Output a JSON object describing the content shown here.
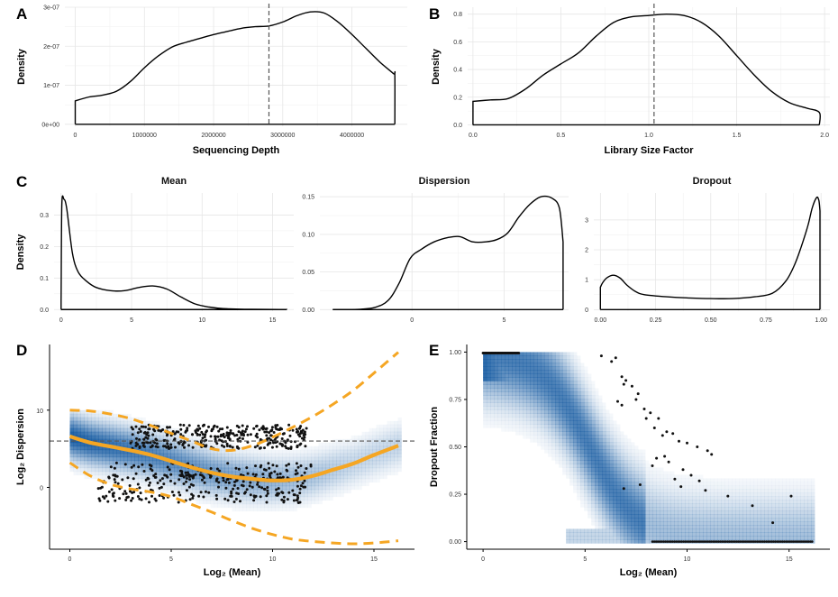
{
  "colors": {
    "line": "#000000",
    "trend": "#f5a623",
    "heat_low": "#ffffff",
    "heat_high": "#08519c",
    "points": "#111111",
    "reference": "#555555"
  },
  "chart_data": [
    {
      "panel": "A",
      "type": "line",
      "title": "",
      "xlabel": "Sequencing Depth",
      "ylabel": "Density",
      "xlim": [
        -150000,
        4800000
      ],
      "ylim": [
        -5e-09,
        3e-07
      ],
      "xticks": [
        0,
        1000000,
        2000000,
        3000000,
        4000000
      ],
      "xtick_labels": [
        "0",
        "1000000",
        "2000000",
        "3000000",
        "4000000"
      ],
      "yticks": [
        0,
        1e-07,
        2e-07,
        3e-07
      ],
      "ytick_labels": [
        "0e+00",
        "1e-07",
        "2e-07",
        "3e-07"
      ],
      "grid": true,
      "reference_line_x": 2800000,
      "x": [
        0,
        200000,
        400000,
        600000,
        800000,
        1000000,
        1200000,
        1400000,
        1600000,
        1800000,
        2000000,
        2200000,
        2400000,
        2600000,
        2800000,
        3000000,
        3200000,
        3400000,
        3600000,
        3800000,
        4000000,
        4200000,
        4400000,
        4600000,
        4620000,
        4620000
      ],
      "y": [
        6e-08,
        7e-08,
        7.5e-08,
        8.5e-08,
        1.1e-07,
        1.45e-07,
        1.75e-07,
        1.98e-07,
        2.1e-07,
        2.2e-07,
        2.3e-07,
        2.38e-07,
        2.46e-07,
        2.5e-07,
        2.52e-07,
        2.62e-07,
        2.78e-07,
        2.88e-07,
        2.85e-07,
        2.62e-07,
        2.3e-07,
        1.95e-07,
        1.6e-07,
        1.3e-07,
        1.25e-07,
        0
      ]
    },
    {
      "panel": "B",
      "type": "line",
      "title": "",
      "xlabel": "Library Size Factor",
      "ylabel": "Density",
      "xlim": [
        -0.03,
        2.03
      ],
      "ylim": [
        -0.01,
        0.85
      ],
      "xticks": [
        0.0,
        0.5,
        1.0,
        1.5,
        2.0
      ],
      "xtick_labels": [
        "0.0",
        "0.5",
        "1.0",
        "1.5",
        "2.0"
      ],
      "yticks": [
        0.0,
        0.2,
        0.4,
        0.6,
        0.8
      ],
      "ytick_labels": [
        "0.0",
        "0.2",
        "0.4",
        "0.6",
        "0.8"
      ],
      "grid": true,
      "reference_line_x": 1.03,
      "x": [
        0.0,
        0.1,
        0.2,
        0.3,
        0.4,
        0.5,
        0.6,
        0.7,
        0.8,
        0.9,
        1.0,
        1.1,
        1.2,
        1.3,
        1.4,
        1.5,
        1.6,
        1.7,
        1.8,
        1.9,
        1.97,
        1.97
      ],
      "y": [
        0.17,
        0.18,
        0.19,
        0.26,
        0.36,
        0.44,
        0.52,
        0.64,
        0.74,
        0.78,
        0.79,
        0.8,
        0.79,
        0.74,
        0.64,
        0.5,
        0.36,
        0.24,
        0.16,
        0.12,
        0.09,
        0
      ]
    },
    {
      "panel": "C",
      "type": "line",
      "title": "Mean",
      "xlabel": "",
      "ylabel": "Density",
      "xlim": [
        -0.5,
        16.5
      ],
      "ylim": [
        -0.005,
        0.37
      ],
      "xticks": [
        0,
        5,
        10,
        15
      ],
      "xtick_labels": [
        "0",
        "5",
        "10",
        "15"
      ],
      "yticks": [
        0.0,
        0.1,
        0.2,
        0.3
      ],
      "ytick_labels": [
        "0.0",
        "0.1",
        "0.2",
        "0.3"
      ],
      "grid": true,
      "x": [
        0,
        0.05,
        0.2,
        0.4,
        0.8,
        1.2,
        1.8,
        2.5,
        3.5,
        4.5,
        5.5,
        6.5,
        7.5,
        8.5,
        9.5,
        10.5,
        11.5,
        13,
        14.5,
        15.5,
        16
      ],
      "y": [
        0.03,
        0.33,
        0.35,
        0.32,
        0.18,
        0.12,
        0.09,
        0.07,
        0.06,
        0.06,
        0.07,
        0.075,
        0.065,
        0.04,
        0.018,
        0.008,
        0.003,
        0.001,
        0.0005,
        0.0002,
        0.0001
      ]
    },
    {
      "panel": "C",
      "type": "line",
      "title": "Dispersion",
      "xlabel": "",
      "ylabel": "",
      "xlim": [
        -5,
        8.5
      ],
      "ylim": [
        -0.002,
        0.155
      ],
      "xticks": [
        0,
        5
      ],
      "xtick_labels": [
        "0",
        "5"
      ],
      "yticks": [
        0.0,
        0.05,
        0.1,
        0.15
      ],
      "ytick_labels": [
        "0.00",
        "0.05",
        "0.10",
        "0.15"
      ],
      "grid": true,
      "x": [
        -4.3,
        -3.5,
        -2.8,
        -2,
        -1.3,
        -0.7,
        -0.1,
        0.5,
        1.2,
        2.0,
        2.6,
        3.3,
        4.0,
        4.6,
        5.2,
        5.8,
        6.4,
        7.0,
        7.6,
        8.0,
        8.2
      ],
      "y": [
        0,
        0,
        0.0005,
        0.003,
        0.012,
        0.035,
        0.068,
        0.08,
        0.09,
        0.096,
        0.097,
        0.09,
        0.09,
        0.093,
        0.102,
        0.123,
        0.14,
        0.15,
        0.148,
        0.135,
        0.09
      ]
    },
    {
      "panel": "C",
      "type": "line",
      "title": "Dropout",
      "xlabel": "",
      "ylabel": "",
      "xlim": [
        -0.03,
        1.04
      ],
      "ylim": [
        -0.05,
        3.9
      ],
      "xticks": [
        0.0,
        0.25,
        0.5,
        0.75,
        1.0
      ],
      "xtick_labels": [
        "0.00",
        "0.25",
        "0.50",
        "0.75",
        "1.00"
      ],
      "yticks": [
        0,
        1,
        2,
        3
      ],
      "ytick_labels": [
        "0",
        "1",
        "2",
        "3"
      ],
      "grid": true,
      "x": [
        0.0,
        0.01,
        0.03,
        0.06,
        0.09,
        0.12,
        0.16,
        0.2,
        0.3,
        0.4,
        0.5,
        0.6,
        0.7,
        0.78,
        0.84,
        0.88,
        0.91,
        0.94,
        0.96,
        0.98,
        0.99,
        0.995
      ],
      "y": [
        0.75,
        0.9,
        1.07,
        1.15,
        1.05,
        0.82,
        0.6,
        0.5,
        0.43,
        0.39,
        0.37,
        0.37,
        0.43,
        0.55,
        0.95,
        1.5,
        2.1,
        2.8,
        3.4,
        3.75,
        3.65,
        3.3
      ]
    },
    {
      "panel": "D",
      "type": "scatter",
      "title": "",
      "xlabel": "Log₂ (Mean)",
      "ylabel": "Log₂ Dispersion",
      "xlim": [
        -1,
        17
      ],
      "ylim": [
        -8,
        18.5
      ],
      "xticks": [
        0,
        5,
        10,
        15
      ],
      "xtick_labels": [
        "0",
        "5",
        "10",
        "15"
      ],
      "yticks": [
        0,
        10
      ],
      "ytick_labels": [
        "0",
        "10"
      ],
      "grid": false,
      "reference_line_y": 6,
      "density_background": true,
      "trend_x": [
        0,
        1,
        2,
        3,
        4,
        5,
        6,
        7,
        8,
        9,
        10,
        11,
        12,
        13,
        14,
        15,
        16.2
      ],
      "trend_y": [
        6.6,
        5.8,
        5.3,
        4.8,
        4.2,
        3.4,
        2.6,
        1.9,
        1.4,
        1.1,
        0.9,
        1.0,
        1.5,
        2.3,
        3.1,
        4.2,
        5.4
      ],
      "upper_x": [
        0,
        1,
        2,
        3,
        4,
        5,
        6,
        7,
        8,
        9,
        10,
        11,
        12,
        13,
        14,
        15,
        16.2
      ],
      "upper_y": [
        10,
        9.9,
        9.5,
        8.9,
        8.0,
        7.0,
        6.0,
        5.0,
        4.8,
        5.4,
        6.5,
        7.8,
        9.2,
        10.8,
        12.6,
        14.8,
        17.5
      ],
      "lower_x": [
        0,
        1,
        2,
        3,
        4,
        5,
        6,
        7,
        8,
        9,
        10,
        11,
        12,
        13,
        14,
        15,
        16.2
      ],
      "lower_y": [
        3.2,
        1.5,
        0.4,
        -0.2,
        -0.6,
        -1.2,
        -2.2,
        -3.2,
        -4.3,
        -5.3,
        -6.1,
        -6.7,
        -7.0,
        -7.2,
        -7.3,
        -7.2,
        -6.9
      ]
    },
    {
      "panel": "E",
      "type": "scatter",
      "title": "",
      "xlabel": "Log₂ (Mean)",
      "ylabel": "Dropout Fraction",
      "xlim": [
        -0.8,
        17
      ],
      "ylim": [
        -0.04,
        1.04
      ],
      "xticks": [
        0,
        5,
        10,
        15
      ],
      "xtick_labels": [
        "0",
        "5",
        "10",
        "15"
      ],
      "yticks": [
        0.0,
        0.25,
        0.5,
        0.75,
        1.0
      ],
      "ytick_labels": [
        "0.00",
        "0.25",
        "0.50",
        "0.75",
        "1.00"
      ],
      "grid": false,
      "density_background": true,
      "points_x": [
        5.8,
        6.5,
        6.3,
        6.8,
        7.0,
        6.9,
        7.3,
        7.6,
        7.5,
        6.6,
        6.8,
        7.9,
        8.2,
        8.0,
        8.6,
        8.4,
        9.0,
        9.3,
        8.8,
        9.6,
        10.0,
        10.5,
        11.0,
        11.2,
        8.5,
        9.1,
        8.3,
        9.8,
        10.2,
        9.4,
        10.6,
        7.7,
        6.9,
        12.0,
        13.2,
        14.2,
        15.1,
        9.7,
        8.9,
        10.9
      ],
      "points_y": [
        0.98,
        0.97,
        0.95,
        0.87,
        0.85,
        0.83,
        0.82,
        0.78,
        0.75,
        0.74,
        0.72,
        0.7,
        0.68,
        0.65,
        0.65,
        0.6,
        0.58,
        0.57,
        0.56,
        0.53,
        0.52,
        0.5,
        0.48,
        0.46,
        0.44,
        0.42,
        0.4,
        0.38,
        0.35,
        0.33,
        0.32,
        0.3,
        0.28,
        0.24,
        0.19,
        0.1,
        0.24,
        0.29,
        0.45,
        0.27
      ]
    }
  ]
}
